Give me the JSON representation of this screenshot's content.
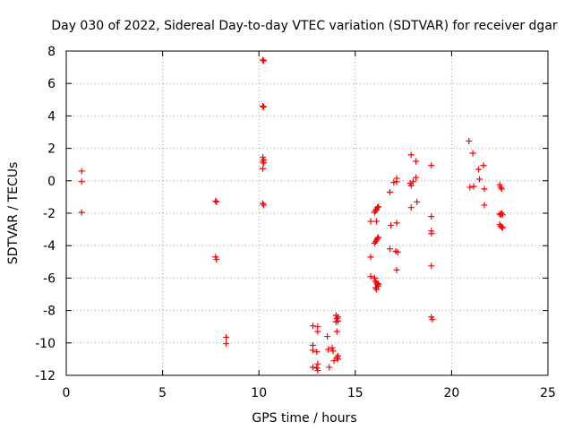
{
  "chart_data": {
    "type": "scatter",
    "title": "Day 030 of 2022, Sidereal Day-to-day VTEC variation (SDTVAR) for receiver dgar",
    "xlabel": "GPS time / hours",
    "ylabel": "SDTVAR / TECUs",
    "xlim": [
      0,
      25
    ],
    "ylim": [
      -12,
      8
    ],
    "xticks": [
      0,
      5,
      10,
      15,
      20,
      25
    ],
    "yticks": [
      -12,
      -10,
      -8,
      -6,
      -4,
      -2,
      0,
      2,
      4,
      6,
      8
    ],
    "grid": true,
    "marker": "+",
    "color": "#ff0000",
    "series": [
      {
        "name": "SDTVAR",
        "points": [
          [
            0.8,
            0.6
          ],
          [
            0.8,
            -0.05
          ],
          [
            0.8,
            -1.95
          ],
          [
            7.75,
            -1.25
          ],
          [
            7.8,
            -1.3
          ],
          [
            7.75,
            -4.7
          ],
          [
            7.8,
            -4.85
          ],
          [
            8.3,
            -9.65
          ],
          [
            8.3,
            -10.05
          ],
          [
            10.2,
            7.45
          ],
          [
            10.25,
            7.4
          ],
          [
            10.2,
            4.6
          ],
          [
            10.25,
            4.55
          ],
          [
            10.2,
            1.45
          ],
          [
            10.25,
            1.3
          ],
          [
            10.2,
            1.2
          ],
          [
            10.25,
            1.1
          ],
          [
            10.2,
            0.75
          ],
          [
            10.2,
            -1.4
          ],
          [
            10.25,
            -1.5
          ],
          [
            12.8,
            -8.95
          ],
          [
            12.8,
            -10.15
          ],
          [
            12.8,
            -10.45
          ],
          [
            12.8,
            -11.5
          ],
          [
            13.05,
            -9.0
          ],
          [
            13.05,
            -9.3
          ],
          [
            13.0,
            -10.55
          ],
          [
            13.05,
            -11.3
          ],
          [
            13.0,
            -11.55
          ],
          [
            13.05,
            -11.7
          ],
          [
            13.55,
            -9.6
          ],
          [
            13.6,
            -10.4
          ],
          [
            13.65,
            -11.5
          ],
          [
            13.8,
            -10.3
          ],
          [
            13.85,
            -10.5
          ],
          [
            13.9,
            -11.1
          ],
          [
            14.0,
            -8.3
          ],
          [
            14.05,
            -8.5
          ],
          [
            14.0,
            -8.7
          ],
          [
            14.05,
            -9.3
          ],
          [
            14.1,
            -8.4
          ],
          [
            14.1,
            -8.65
          ],
          [
            14.1,
            -10.8
          ],
          [
            14.1,
            -11.0
          ],
          [
            14.05,
            -10.9
          ],
          [
            15.8,
            -2.5
          ],
          [
            15.8,
            -4.7
          ],
          [
            15.8,
            -5.9
          ],
          [
            16.0,
            -1.95
          ],
          [
            16.05,
            -1.85
          ],
          [
            16.1,
            -1.75
          ],
          [
            16.15,
            -1.65
          ],
          [
            16.2,
            -1.6
          ],
          [
            16.1,
            -2.5
          ],
          [
            16.0,
            -3.85
          ],
          [
            16.05,
            -3.75
          ],
          [
            16.1,
            -3.65
          ],
          [
            16.15,
            -3.55
          ],
          [
            16.2,
            -3.5
          ],
          [
            16.0,
            -6.0
          ],
          [
            16.05,
            -6.2
          ],
          [
            16.1,
            -6.3
          ],
          [
            16.15,
            -6.4
          ],
          [
            16.2,
            -6.5
          ],
          [
            16.05,
            -6.6
          ],
          [
            16.1,
            -6.7
          ],
          [
            16.2,
            -6.35
          ],
          [
            16.8,
            -0.7
          ],
          [
            16.85,
            -2.75
          ],
          [
            16.8,
            -4.2
          ],
          [
            17.0,
            -0.1
          ],
          [
            17.15,
            -0.05
          ],
          [
            17.15,
            0.15
          ],
          [
            17.15,
            -2.6
          ],
          [
            17.1,
            -4.35
          ],
          [
            17.2,
            -4.4
          ],
          [
            17.15,
            -5.5
          ],
          [
            17.9,
            1.6
          ],
          [
            17.85,
            -0.15
          ],
          [
            17.9,
            -0.3
          ],
          [
            18.0,
            -0.05
          ],
          [
            17.9,
            -1.65
          ],
          [
            18.15,
            1.2
          ],
          [
            18.15,
            0.2
          ],
          [
            18.2,
            -1.3
          ],
          [
            18.95,
            0.95
          ],
          [
            18.95,
            -2.2
          ],
          [
            18.95,
            -3.1
          ],
          [
            18.95,
            -3.25
          ],
          [
            18.95,
            -5.25
          ],
          [
            18.95,
            -8.4
          ],
          [
            19.0,
            -8.55
          ],
          [
            20.9,
            2.45
          ],
          [
            21.1,
            1.7
          ],
          [
            20.95,
            -0.4
          ],
          [
            21.15,
            -0.35
          ],
          [
            21.4,
            0.7
          ],
          [
            21.45,
            0.1
          ],
          [
            21.65,
            0.95
          ],
          [
            21.7,
            -0.5
          ],
          [
            21.7,
            -1.5
          ],
          [
            22.5,
            -0.25
          ],
          [
            22.55,
            -0.4
          ],
          [
            22.6,
            -0.5
          ],
          [
            22.5,
            -2.05
          ],
          [
            22.55,
            -2.1
          ],
          [
            22.6,
            -2.0
          ],
          [
            22.65,
            -2.1
          ],
          [
            22.5,
            -2.7
          ],
          [
            22.55,
            -2.8
          ],
          [
            22.6,
            -2.85
          ],
          [
            22.65,
            -2.9
          ]
        ]
      }
    ]
  }
}
